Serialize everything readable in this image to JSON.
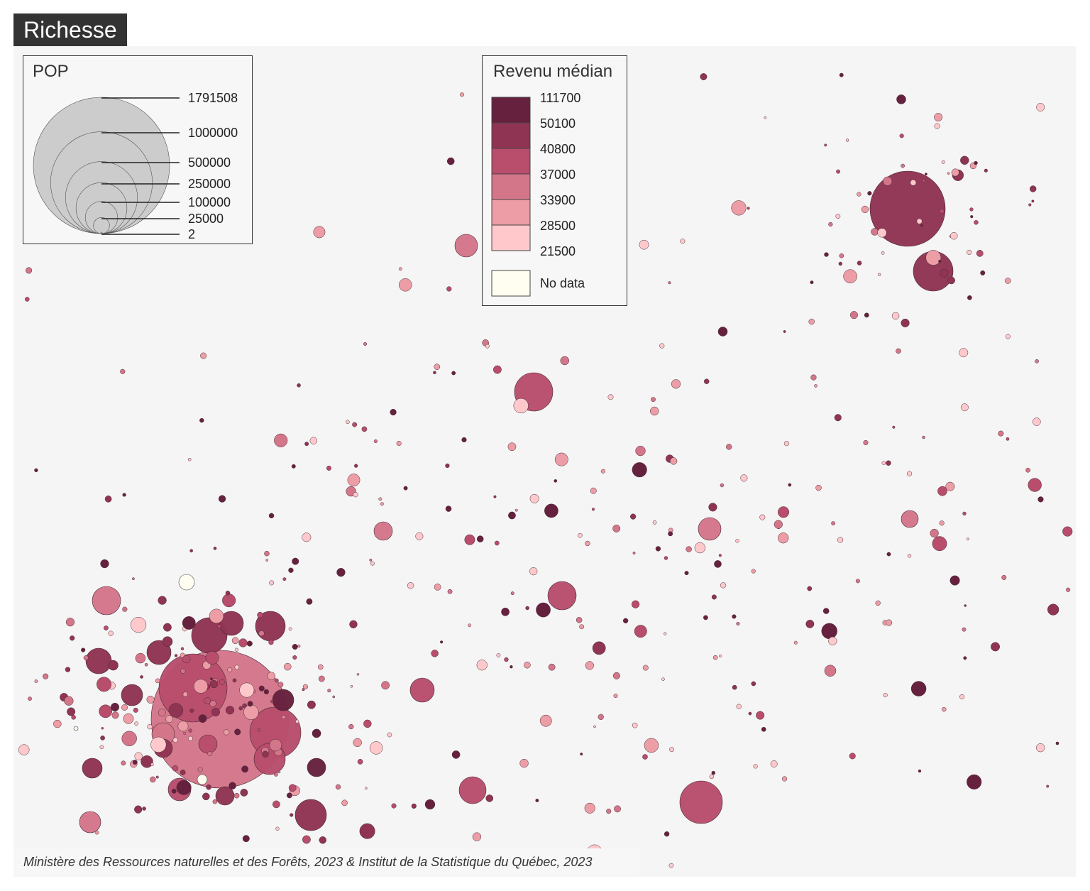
{
  "title": "Richesse",
  "source": "Ministère des Ressources naturelles et des Forêts, 2023 & Institut de la Statistique du Québec, 2023",
  "legend_pop": {
    "title": "POP",
    "circle_fill": "#cccccc",
    "values": [
      1791508,
      1000000,
      500000,
      250000,
      100000,
      25000,
      2
    ],
    "labels": [
      "1791508",
      "1000000",
      "500000",
      "250000",
      "100000",
      "25000",
      "2"
    ]
  },
  "legend_income": {
    "title": "Revenu médian",
    "breaks": [
      "111700",
      "50100",
      "40800",
      "37000",
      "33900",
      "28500",
      "21500"
    ],
    "colors": [
      "#66213f",
      "#8f3453",
      "#b84d6c",
      "#d4768a",
      "#ec9da5",
      "#ffc9cc"
    ],
    "no_data_label": "No data",
    "no_data_color": "#fffef0"
  },
  "map": {
    "background": "#f5f5f5",
    "stroke_color": "#4a2a35"
  }
}
